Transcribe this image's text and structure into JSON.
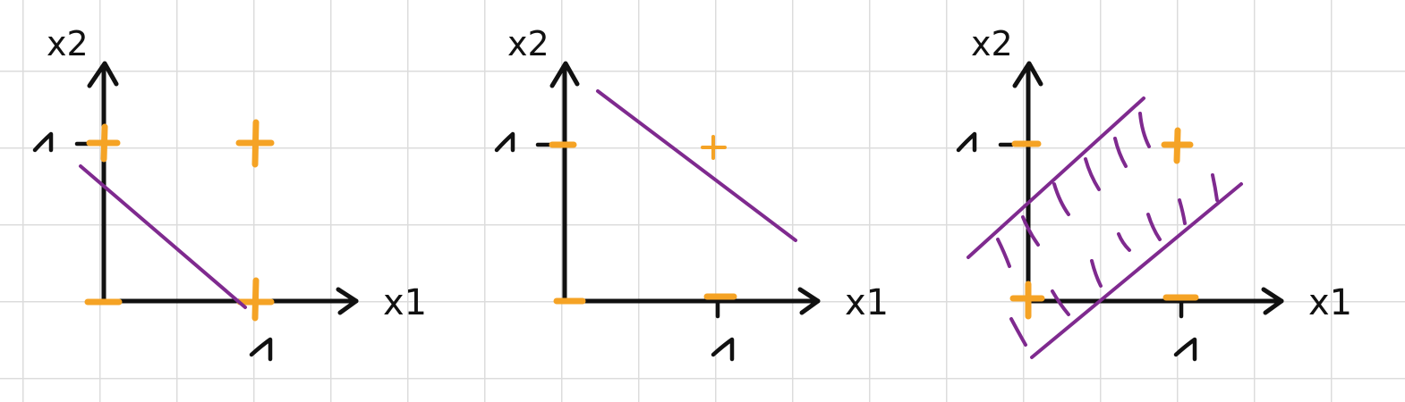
{
  "panels": [
    {
      "id": "panel-1",
      "y_axis_label": "x2",
      "x_axis_label": "x1",
      "tick_labels": {
        "x": "1",
        "y": "1"
      },
      "points": [
        {
          "x1": 0,
          "x2": 0,
          "sign": "-"
        },
        {
          "x1": 0,
          "x2": 1,
          "sign": "+"
        },
        {
          "x1": 1,
          "x2": 0,
          "sign": "+"
        },
        {
          "x1": 1,
          "x2": 1,
          "sign": "+"
        }
      ],
      "decision_boundary": "single line"
    },
    {
      "id": "panel-2",
      "y_axis_label": "x2",
      "x_axis_label": "x1",
      "tick_labels": {
        "x": "1",
        "y": "1"
      },
      "points": [
        {
          "x1": 0,
          "x2": 0,
          "sign": "-"
        },
        {
          "x1": 0,
          "x2": 1,
          "sign": "-"
        },
        {
          "x1": 1,
          "x2": 0,
          "sign": "-"
        },
        {
          "x1": 1,
          "x2": 1,
          "sign": "+"
        }
      ],
      "decision_boundary": "single line"
    },
    {
      "id": "panel-3",
      "y_axis_label": "x2",
      "x_axis_label": "x1",
      "tick_labels": {
        "x": "1",
        "y": "1"
      },
      "points": [
        {
          "x1": 0,
          "x2": 0,
          "sign": "+"
        },
        {
          "x1": 0,
          "x2": 1,
          "sign": "-"
        },
        {
          "x1": 1,
          "x2": 0,
          "sign": "-"
        },
        {
          "x1": 1,
          "x2": 1,
          "sign": "+"
        }
      ],
      "decision_boundary": "hatched band between two parallel lines"
    }
  ],
  "colors": {
    "axis": "#111111",
    "point_marker": "#f5a325",
    "boundary": "#7f2a8f",
    "grid": "#dcdcdc",
    "background": "#ffffff"
  }
}
